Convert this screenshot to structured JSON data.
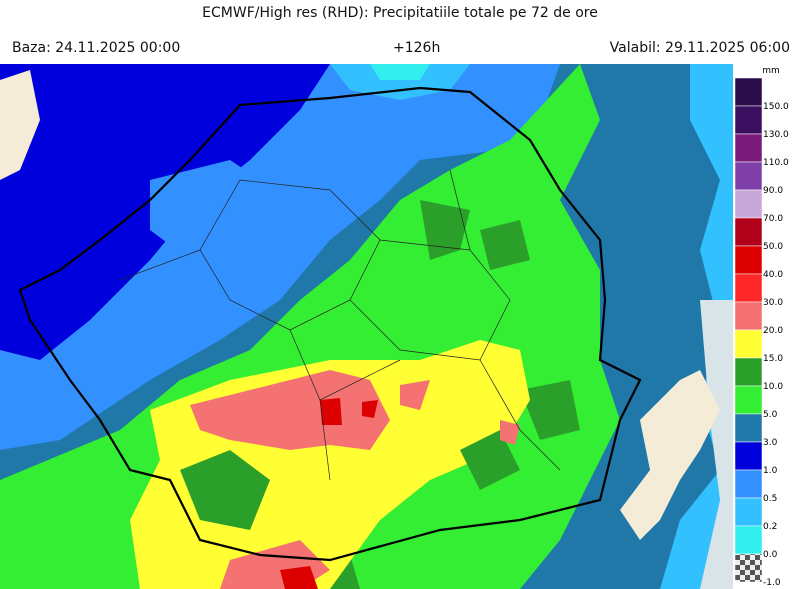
{
  "header": {
    "title": "ECMWF/High res (RHD): Precipitatiile totale pe 72 de ore",
    "base": "Baza: 24.11.2025 00:00",
    "lead": "+126h",
    "valid": "Valabil: 29.11.2025 06:00"
  },
  "legend": {
    "unit": "mm",
    "entries": [
      {
        "label": "150.0",
        "color": "#2a0c4a"
      },
      {
        "label": "130.0",
        "color": "#3c1060"
      },
      {
        "label": "110.0",
        "color": "#7a1a7a"
      },
      {
        "label": "90.0",
        "color": "#7e40a8"
      },
      {
        "label": "70.0",
        "color": "#c8a8d8"
      },
      {
        "label": "50.0",
        "color": "#b0001a"
      },
      {
        "label": "40.0",
        "color": "#dd0000"
      },
      {
        "label": "30.0",
        "color": "#ff2828"
      },
      {
        "label": "20.0",
        "color": "#f57272"
      },
      {
        "label": "15.0",
        "color": "#ffff33"
      },
      {
        "label": "10.0",
        "color": "#2aa02a"
      },
      {
        "label": "5.0",
        "color": "#33ee33"
      },
      {
        "label": "3.0",
        "color": "#1f78a8"
      },
      {
        "label": "1.0",
        "color": "#0000dd"
      },
      {
        "label": "0.5",
        "color": "#3390ff"
      },
      {
        "label": "0.2",
        "color": "#33c0ff"
      },
      {
        "label": "0.0",
        "color": "#33eeee"
      },
      {
        "label": "-1.0",
        "color": "checker"
      }
    ]
  }
}
